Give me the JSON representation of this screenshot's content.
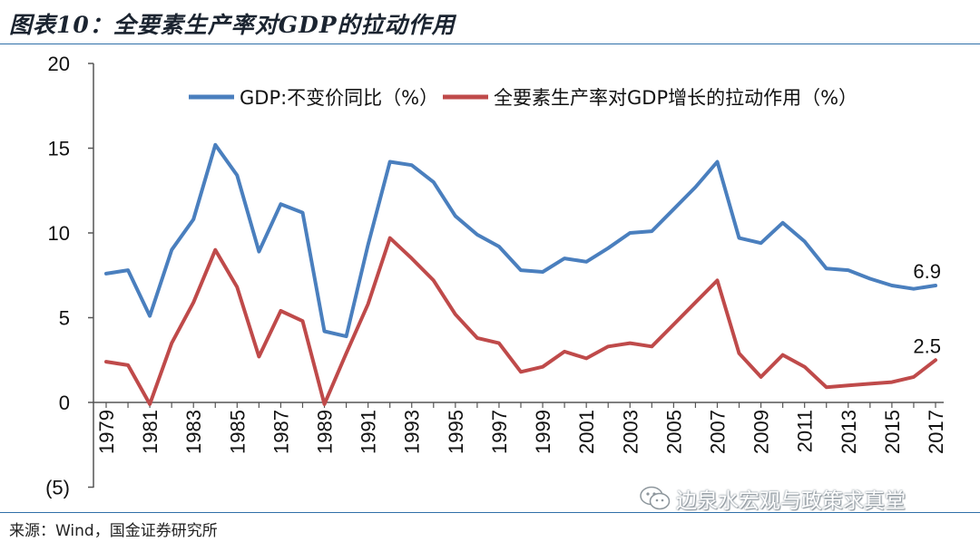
{
  "title": "图表10：全要素生产率对GDP的拉动作用",
  "source": "来源：Wind，国金证券研究所",
  "watermark": "边泉水宏观与政策求真堂",
  "chart_data": {
    "type": "line",
    "x": [
      1979,
      1980,
      1981,
      1982,
      1983,
      1984,
      1985,
      1986,
      1987,
      1988,
      1989,
      1990,
      1991,
      1992,
      1993,
      1994,
      1995,
      1996,
      1997,
      1998,
      1999,
      2000,
      2001,
      2002,
      2003,
      2004,
      2005,
      2006,
      2007,
      2008,
      2009,
      2010,
      2011,
      2012,
      2013,
      2014,
      2015,
      2016,
      2017
    ],
    "x_tick_labels": [
      "1979",
      "1981",
      "1983",
      "1985",
      "1987",
      "1989",
      "1991",
      "1993",
      "1995",
      "1997",
      "1999",
      "2001",
      "2003",
      "2005",
      "2007",
      "2009",
      "2011",
      "2013",
      "2015",
      "2017"
    ],
    "y_tick_labels": [
      "(5)",
      "0",
      "5",
      "10",
      "15",
      "20"
    ],
    "y_ticks": [
      -5,
      0,
      5,
      10,
      15,
      20
    ],
    "ylim": [
      -5,
      20
    ],
    "series": [
      {
        "name": "GDP:不变价同比（%）",
        "color": "#4a7fbe",
        "values": [
          7.6,
          7.8,
          5.1,
          9.0,
          10.8,
          15.2,
          13.4,
          8.9,
          11.7,
          11.2,
          4.2,
          3.9,
          9.3,
          14.2,
          14.0,
          13.0,
          11.0,
          9.9,
          9.2,
          7.8,
          7.7,
          8.5,
          8.3,
          9.1,
          10.0,
          10.1,
          11.4,
          12.7,
          14.2,
          9.7,
          9.4,
          10.6,
          9.5,
          7.9,
          7.8,
          7.3,
          6.9,
          6.7,
          6.9
        ],
        "end_label": "6.9"
      },
      {
        "name": "全要素生产率对GDP增长的拉动作用（%）",
        "color": "#bf4a4a",
        "values": [
          2.4,
          2.2,
          -0.1,
          3.5,
          5.9,
          9.0,
          6.8,
          2.7,
          5.4,
          4.8,
          -0.1,
          2.9,
          5.8,
          9.7,
          8.5,
          7.2,
          5.2,
          3.8,
          3.5,
          1.8,
          2.1,
          3.0,
          2.6,
          3.3,
          3.5,
          3.3,
          4.6,
          5.9,
          7.2,
          2.9,
          1.5,
          2.8,
          2.1,
          0.9,
          1.0,
          1.1,
          1.2,
          1.5,
          2.5
        ],
        "end_label": "2.5"
      }
    ],
    "xlabel": "",
    "ylabel": ""
  }
}
